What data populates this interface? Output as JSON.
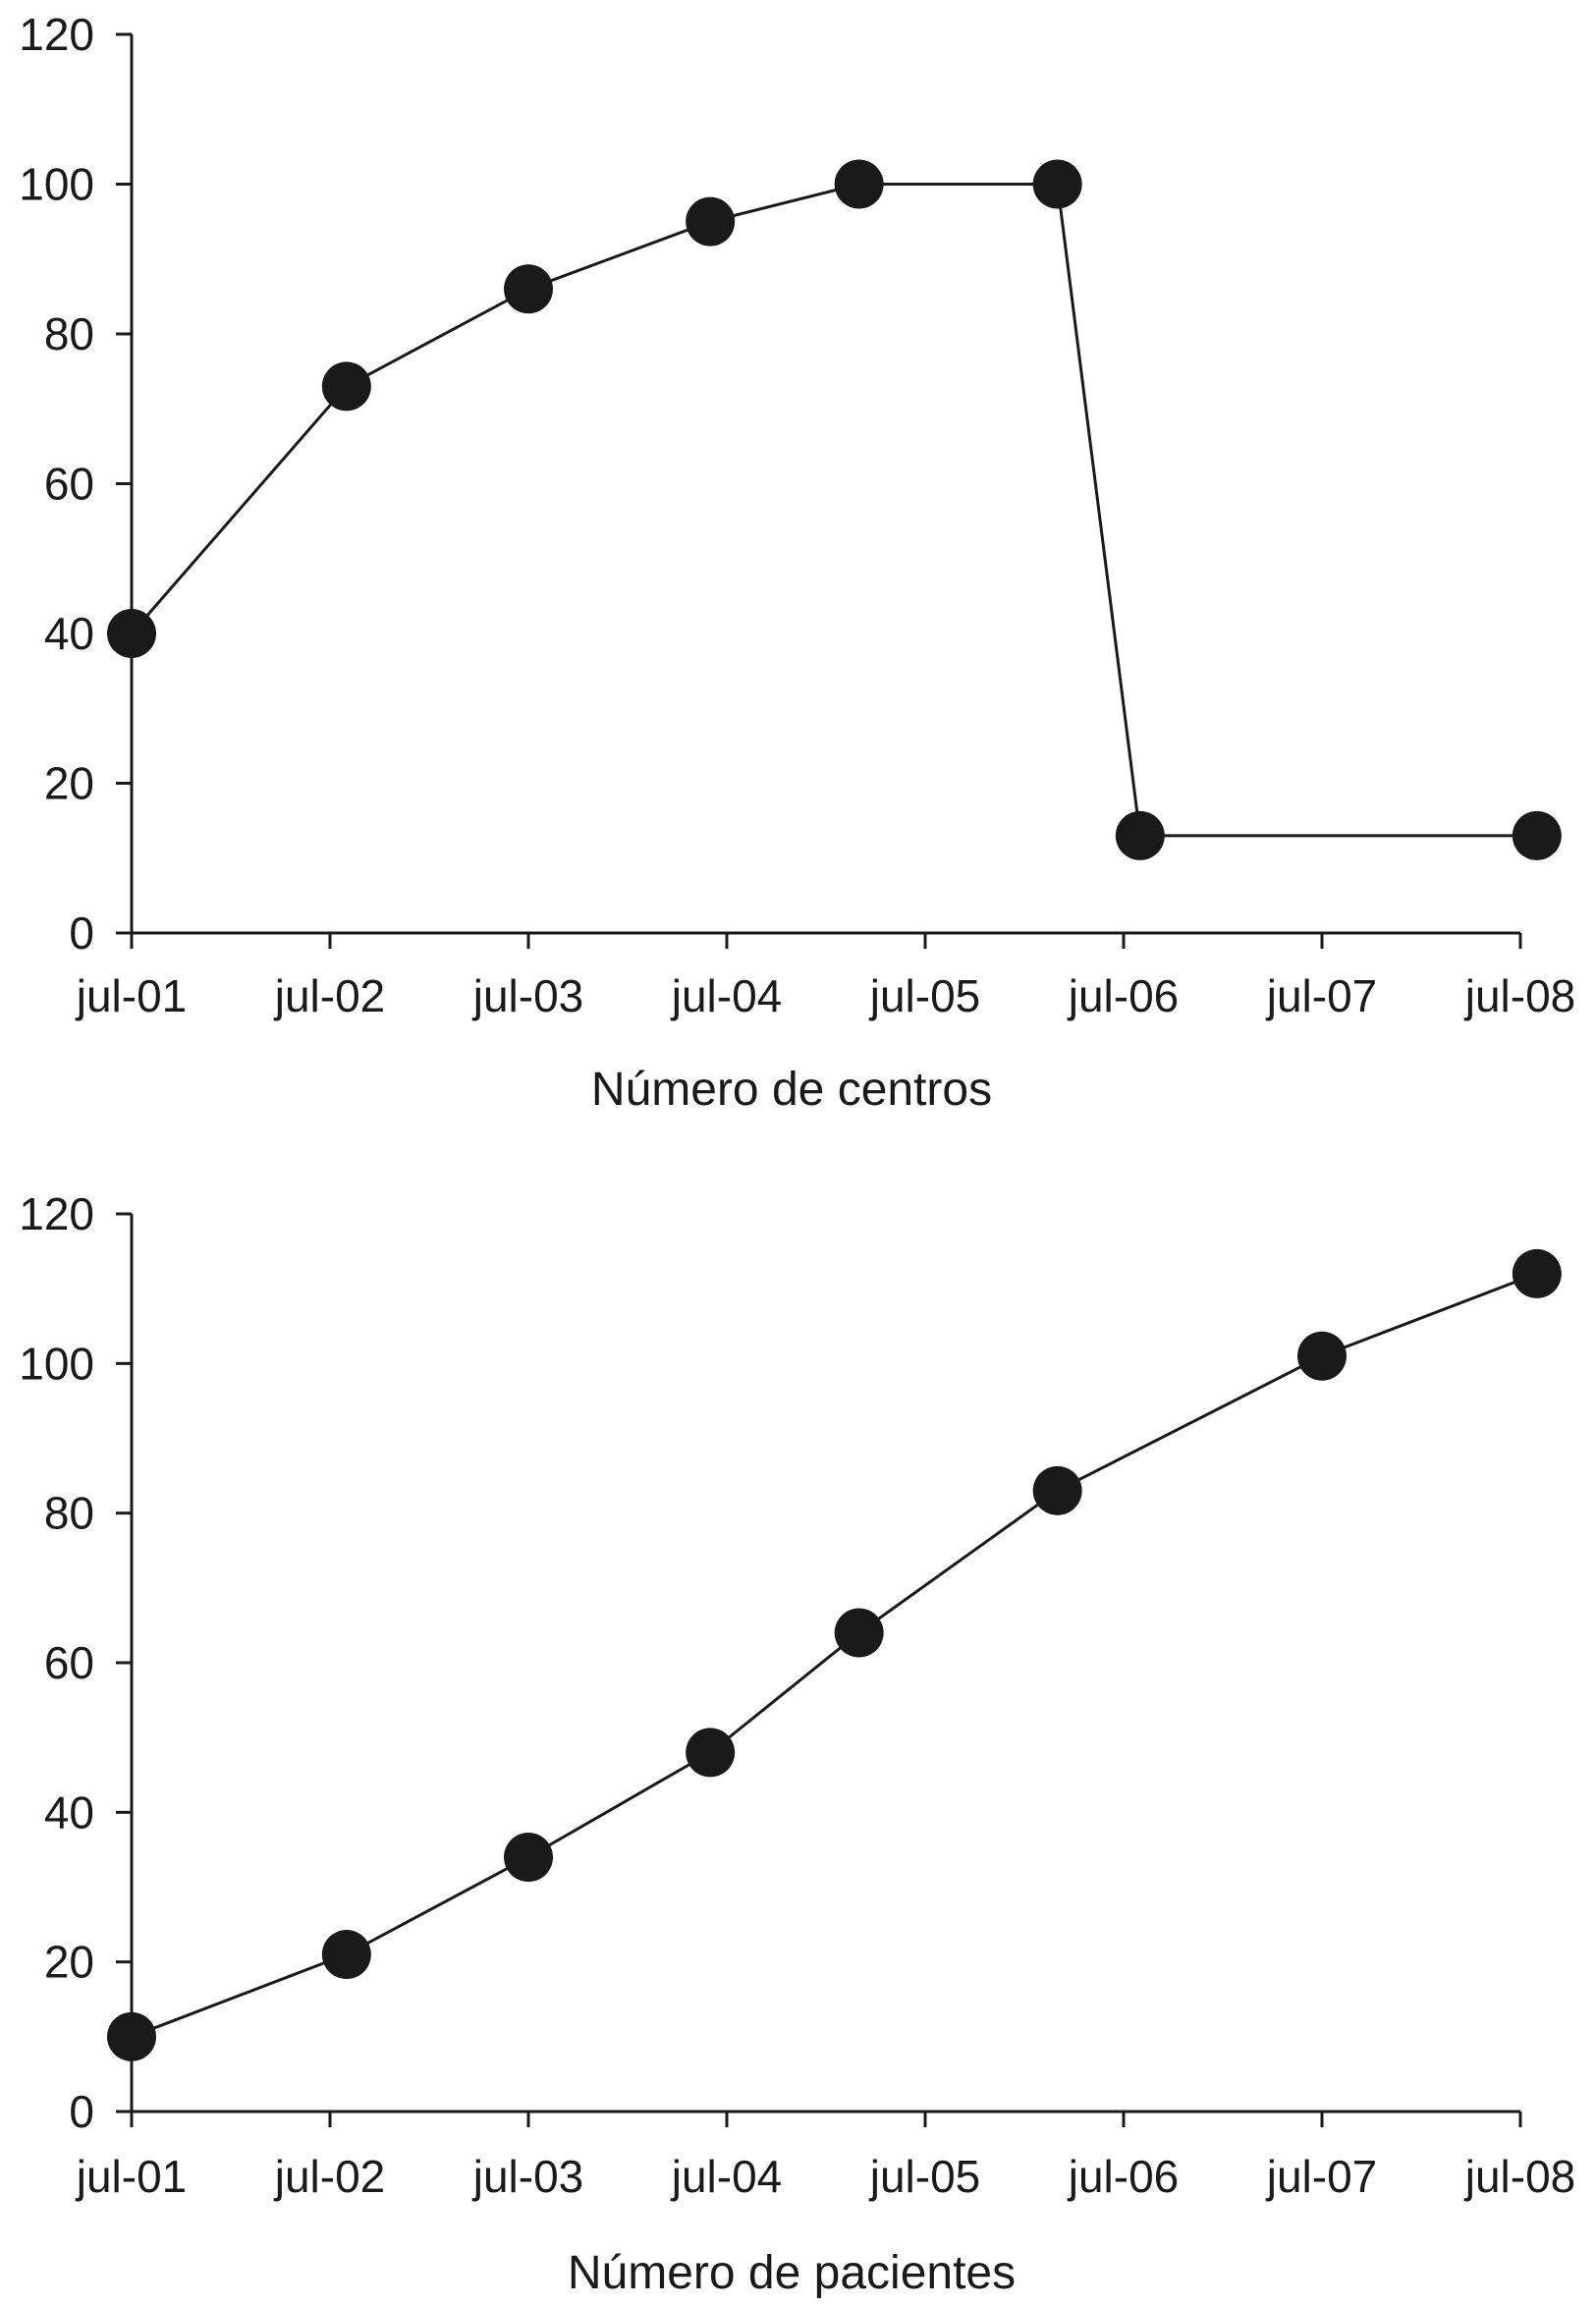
{
  "chart_data": [
    {
      "type": "line",
      "xlabel": "Número de centros",
      "ylabel": "",
      "ylim": [
        0,
        120
      ],
      "yticks": [
        0,
        20,
        40,
        60,
        80,
        100,
        120
      ],
      "xticks": [
        "jul-01",
        "jul-02",
        "jul-03",
        "jul-04",
        "jul-05",
        "jul-06",
        "jul-07",
        "jul-08"
      ],
      "grid": false,
      "marker": "filled-circle",
      "line_color": "#1a1a1a",
      "x": [
        "2001-07",
        "2002-08",
        "2003-07",
        "2004-06",
        "2005-03",
        "2006-03",
        "2006-08",
        "2008-08"
      ],
      "y": [
        40,
        73,
        86,
        95,
        100,
        100,
        13,
        13
      ]
    },
    {
      "type": "line",
      "xlabel": "Número de pacientes",
      "ylabel": "",
      "ylim": [
        0,
        120
      ],
      "yticks": [
        0,
        20,
        40,
        60,
        80,
        100,
        120
      ],
      "xticks": [
        "jul-01",
        "jul-02",
        "jul-03",
        "jul-04",
        "jul-05",
        "jul-06",
        "jul-07",
        "jul-08"
      ],
      "grid": false,
      "marker": "filled-circle",
      "line_color": "#1a1a1a",
      "x": [
        "2001-07",
        "2002-08",
        "2003-07",
        "2004-06",
        "2005-03",
        "2006-03",
        "2007-07",
        "2008-08"
      ],
      "y": [
        10,
        21,
        34,
        48,
        64,
        83,
        101,
        112
      ]
    }
  ]
}
